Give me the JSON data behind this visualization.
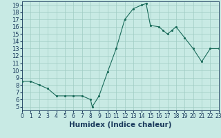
{
  "x": [
    0,
    1,
    2,
    3,
    4,
    5,
    6,
    7,
    8,
    8.2,
    9,
    10,
    11,
    12,
    13,
    14,
    14.5,
    15,
    16,
    16.5,
    17,
    17.5,
    18,
    19,
    20,
    21,
    22,
    23
  ],
  "y": [
    8.5,
    8.5,
    8.0,
    7.5,
    6.5,
    6.5,
    6.5,
    6.5,
    6.0,
    5.0,
    6.5,
    9.8,
    13.0,
    17.0,
    18.5,
    19.0,
    19.2,
    16.2,
    16.0,
    15.5,
    15.0,
    15.5,
    16.0,
    14.5,
    13.0,
    11.2,
    13.0,
    13.0
  ],
  "xlabel": "Humidex (Indice chaleur)",
  "xlim": [
    0,
    23
  ],
  "ylim": [
    4.5,
    19.5
  ],
  "yticks": [
    5,
    6,
    7,
    8,
    9,
    10,
    11,
    12,
    13,
    14,
    15,
    16,
    17,
    18,
    19
  ],
  "xticks": [
    0,
    1,
    2,
    3,
    4,
    5,
    6,
    7,
    8,
    9,
    10,
    11,
    12,
    13,
    14,
    15,
    16,
    17,
    18,
    19,
    20,
    21,
    22,
    23
  ],
  "line_color": "#1a6b5a",
  "marker_color": "#1a6b5a",
  "bg_color": "#c8eae4",
  "grid_color": "#a0ccc4",
  "tick_label_color": "#1a3a5c",
  "xlabel_fontsize": 7.5,
  "tick_fontsize_x": 5.5,
  "tick_fontsize_y": 6.0
}
